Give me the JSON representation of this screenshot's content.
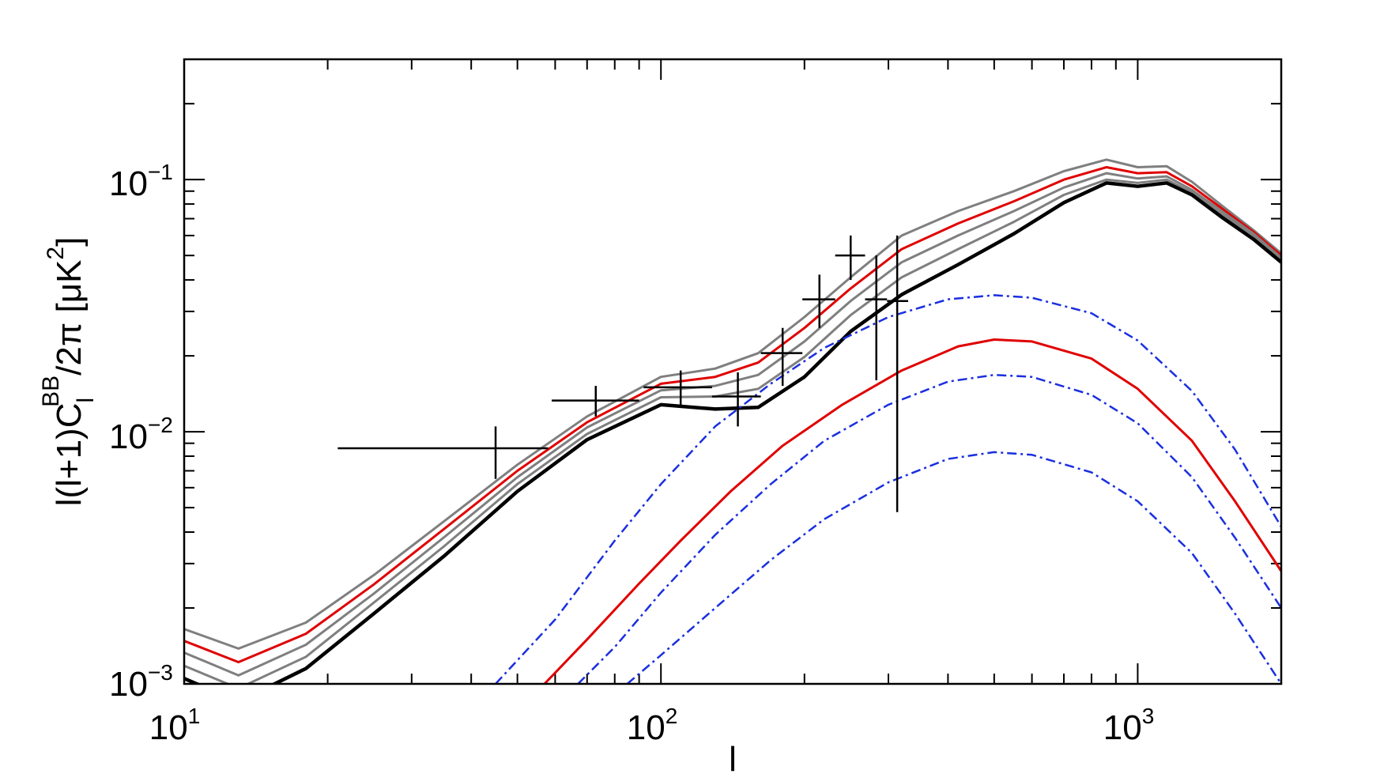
{
  "chart_data": {
    "type": "line",
    "title": "",
    "xlabel": "l",
    "ylabel": {
      "prefix": "l(l+1)C",
      "sub": "l",
      "sup": "BB",
      "mid": "/2π [μK",
      "sup2": "2",
      "suffix": "]"
    },
    "xscale": "log",
    "yscale": "log",
    "xlim": [
      10,
      2000
    ],
    "ylim": [
      0.001,
      0.3
    ],
    "xticks": [
      {
        "value": 10,
        "base": "10",
        "exp": "1"
      },
      {
        "value": 100,
        "base": "10",
        "exp": "2"
      },
      {
        "value": 1000,
        "base": "10",
        "exp": "3"
      }
    ],
    "yticks": [
      {
        "value": 0.001,
        "base": "10",
        "exp": "−3"
      },
      {
        "value": 0.01,
        "base": "10",
        "exp": "−2"
      },
      {
        "value": 0.1,
        "base": "10",
        "exp": "−1"
      }
    ],
    "colors": {
      "black": "#000000",
      "gray": "#7f7f7f",
      "red": "#e00000",
      "blue": "#1a2fe0"
    },
    "series": [
      {
        "name": "total-gray-top",
        "color": "gray",
        "style": "solid",
        "width": 3,
        "x": [
          10,
          13,
          18,
          25,
          35,
          50,
          70,
          100,
          130,
          160,
          200,
          250,
          320,
          420,
          550,
          700,
          860,
          1000,
          1150,
          1300,
          1500,
          1750,
          2000
        ],
        "y": [
          0.00165,
          0.00138,
          0.00175,
          0.0027,
          0.0044,
          0.0074,
          0.0115,
          0.0165,
          0.0178,
          0.0205,
          0.0285,
          0.041,
          0.06,
          0.075,
          0.09,
          0.108,
          0.12,
          0.112,
          0.113,
          0.098,
          0.079,
          0.063,
          0.051
        ]
      },
      {
        "name": "total-red",
        "color": "red",
        "style": "solid",
        "width": 3,
        "x": [
          10,
          13,
          18,
          25,
          35,
          50,
          70,
          100,
          130,
          160,
          200,
          250,
          320,
          420,
          550,
          700,
          860,
          1000,
          1150,
          1300,
          1500,
          1750,
          2000
        ],
        "y": [
          0.00148,
          0.00122,
          0.00158,
          0.00248,
          0.0041,
          0.007,
          0.0109,
          0.0155,
          0.0165,
          0.0188,
          0.0258,
          0.037,
          0.053,
          0.067,
          0.082,
          0.1,
          0.112,
          0.106,
          0.107,
          0.094,
          0.077,
          0.062,
          0.05
        ]
      },
      {
        "name": "total-gray-mid",
        "color": "gray",
        "style": "solid",
        "width": 3,
        "x": [
          10,
          13,
          18,
          25,
          35,
          50,
          70,
          100,
          130,
          160,
          200,
          250,
          320,
          420,
          550,
          700,
          860,
          1000,
          1150,
          1300,
          1500,
          1750,
          2000
        ],
        "y": [
          0.00133,
          0.00108,
          0.00143,
          0.00228,
          0.0038,
          0.0066,
          0.0104,
          0.0146,
          0.0152,
          0.0168,
          0.0228,
          0.033,
          0.047,
          0.06,
          0.075,
          0.093,
          0.106,
          0.101,
          0.103,
          0.091,
          0.075,
          0.061,
          0.049
        ]
      },
      {
        "name": "total-gray-low",
        "color": "gray",
        "style": "solid",
        "width": 3,
        "x": [
          10,
          13,
          18,
          25,
          35,
          50,
          70,
          100,
          130,
          160,
          200,
          250,
          320,
          420,
          550,
          700,
          860,
          1000,
          1150,
          1300,
          1500,
          1750,
          2000
        ],
        "y": [
          0.00118,
          0.00096,
          0.00128,
          0.0021,
          0.0035,
          0.0062,
          0.0098,
          0.0137,
          0.0138,
          0.0148,
          0.0198,
          0.029,
          0.041,
          0.053,
          0.068,
          0.087,
          0.1,
          0.097,
          0.1,
          0.089,
          0.073,
          0.06,
          0.048
        ]
      },
      {
        "name": "lensing-black",
        "color": "black",
        "style": "solid",
        "width": 4.5,
        "x": [
          10,
          13,
          18,
          25,
          35,
          50,
          70,
          100,
          130,
          160,
          200,
          250,
          320,
          420,
          550,
          700,
          860,
          1000,
          1150,
          1300,
          1500,
          1750,
          2000
        ],
        "y": [
          0.00105,
          0.00085,
          0.00115,
          0.0019,
          0.0032,
          0.0058,
          0.0093,
          0.0128,
          0.0123,
          0.0125,
          0.0165,
          0.025,
          0.035,
          0.046,
          0.061,
          0.081,
          0.097,
          0.094,
          0.097,
          0.087,
          0.071,
          0.058,
          0.047
        ]
      },
      {
        "name": "primordial-blue-top",
        "color": "blue",
        "style": "dashdot",
        "width": 2.5,
        "x": [
          45,
          60,
          80,
          100,
          130,
          170,
          220,
          300,
          400,
          500,
          600,
          800,
          1000,
          1300,
          1600,
          2000
        ],
        "y": [
          0.001,
          0.0018,
          0.0037,
          0.0062,
          0.0105,
          0.0155,
          0.0215,
          0.0285,
          0.0335,
          0.0348,
          0.034,
          0.0295,
          0.023,
          0.0145,
          0.0085,
          0.0042
        ]
      },
      {
        "name": "primordial-red",
        "color": "red",
        "style": "solid",
        "width": 3,
        "x": [
          57,
          70,
          90,
          110,
          140,
          180,
          240,
          320,
          420,
          500,
          600,
          800,
          1000,
          1300,
          1600,
          2000
        ],
        "y": [
          0.001,
          0.0015,
          0.0025,
          0.0037,
          0.0058,
          0.0088,
          0.0128,
          0.0175,
          0.0218,
          0.0232,
          0.0228,
          0.0195,
          0.0148,
          0.0092,
          0.0053,
          0.0028
        ]
      },
      {
        "name": "primordial-blue-mid",
        "color": "blue",
        "style": "dashdot",
        "width": 2.5,
        "x": [
          67,
          80,
          100,
          130,
          170,
          220,
          300,
          400,
          500,
          600,
          800,
          1000,
          1300,
          1600,
          2000
        ],
        "y": [
          0.001,
          0.0014,
          0.0023,
          0.0039,
          0.0062,
          0.0092,
          0.0128,
          0.0158,
          0.0168,
          0.0165,
          0.014,
          0.0108,
          0.0066,
          0.0038,
          0.002
        ]
      },
      {
        "name": "primordial-blue-low",
        "color": "blue",
        "style": "dashdot",
        "width": 2.5,
        "x": [
          85,
          100,
          130,
          170,
          220,
          300,
          400,
          500,
          600,
          800,
          1000,
          1300,
          1600,
          2000
        ],
        "y": [
          0.001,
          0.0013,
          0.002,
          0.0031,
          0.0045,
          0.0063,
          0.0078,
          0.0083,
          0.0081,
          0.0069,
          0.0053,
          0.0033,
          0.0019,
          0.001
        ]
      }
    ],
    "error_bars": [
      {
        "x": 45,
        "y": 0.0086,
        "xlo": 21,
        "xhi": 58,
        "ylo": 0.0065,
        "yhi": 0.0105
      },
      {
        "x": 73,
        "y": 0.0133,
        "xlo": 59,
        "xhi": 90,
        "ylo": 0.0115,
        "yhi": 0.0152
      },
      {
        "x": 110,
        "y": 0.015,
        "xlo": 92,
        "xhi": 128,
        "ylo": 0.0125,
        "yhi": 0.0175
      },
      {
        "x": 145,
        "y": 0.0138,
        "xlo": 128,
        "xhi": 162,
        "ylo": 0.0105,
        "yhi": 0.0172
      },
      {
        "x": 180,
        "y": 0.0205,
        "xlo": 162,
        "xhi": 198,
        "ylo": 0.0152,
        "yhi": 0.0258
      },
      {
        "x": 215,
        "y": 0.0335,
        "xlo": 198,
        "xhi": 232,
        "ylo": 0.0258,
        "yhi": 0.042
      },
      {
        "x": 250,
        "y": 0.05,
        "xlo": 232,
        "xhi": 268,
        "ylo": 0.04,
        "yhi": 0.06
      },
      {
        "x": 283,
        "y": 0.0335,
        "xlo": 268,
        "xhi": 298,
        "ylo": 0.016,
        "yhi": 0.05
      },
      {
        "x": 313,
        "y": 0.033,
        "xlo": 298,
        "xhi": 330,
        "ylo": 0.0048,
        "yhi": 0.06
      }
    ]
  }
}
